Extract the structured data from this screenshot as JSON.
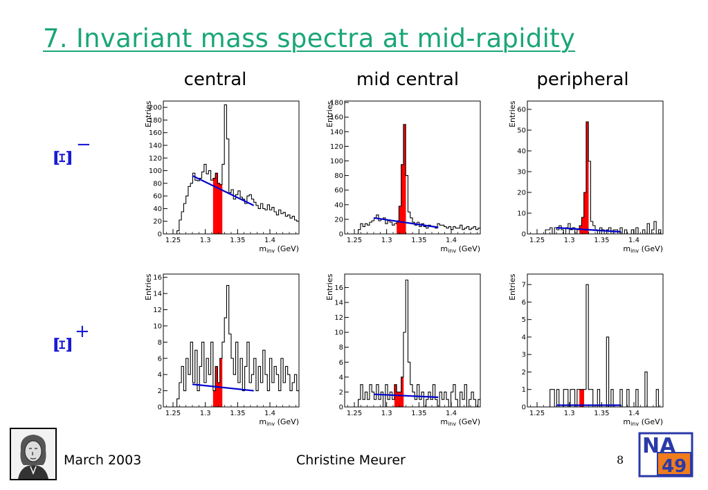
{
  "slide": {
    "title": "7. Invariant mass spectra at mid-rapidity",
    "columns": [
      "central",
      "mid central",
      "peripheral"
    ],
    "rows": [
      {
        "symbol": "Ξ",
        "superscript": "−"
      },
      {
        "symbol": "Ξ",
        "superscript": "+"
      }
    ],
    "footer": {
      "date": "March 2003",
      "author": "Christine Meurer",
      "page": "8"
    },
    "logo_text": {
      "top": "NA",
      "bottom": "49"
    },
    "colors": {
      "title": "#1aa676",
      "label": "#1a1ad6",
      "signal": "#ff0000",
      "fit": "#0000cc"
    }
  },
  "chart_data": [
    {
      "type": "histogram",
      "row": "Ξ−",
      "column": "central",
      "xlabel": "m_inv (GeV)",
      "ylabel": "Entries",
      "xlim": [
        1.235,
        1.445
      ],
      "ylim": [
        0,
        210
      ],
      "xticks": [
        1.25,
        1.3,
        1.35,
        1.4
      ],
      "yticks": [
        0,
        20,
        40,
        60,
        80,
        100,
        120,
        140,
        160,
        180,
        200
      ],
      "bin_width": 0.0035,
      "signal_range": [
        1.312,
        1.326
      ],
      "fit": {
        "x": [
          1.28,
          1.375
        ],
        "y": [
          92,
          45
        ]
      },
      "counts": [
        0,
        0,
        0,
        0,
        0,
        0,
        5,
        22,
        35,
        48,
        60,
        75,
        80,
        96,
        85,
        84,
        88,
        98,
        110,
        95,
        100,
        85,
        88,
        96,
        80,
        78,
        110,
        204,
        150,
        65,
        70,
        55,
        62,
        68,
        58,
        55,
        48,
        60,
        62,
        55,
        50,
        45,
        40,
        48,
        40,
        38,
        46,
        38,
        42,
        35,
        30,
        38,
        32,
        34,
        28,
        30,
        25,
        28,
        22,
        20
      ]
    },
    {
      "type": "histogram",
      "row": "Ξ−",
      "column": "mid central",
      "xlabel": "m_inv (GeV)",
      "ylabel": "Entries",
      "xlim": [
        1.235,
        1.445
      ],
      "ylim": [
        0,
        182
      ],
      "xticks": [
        1.25,
        1.3,
        1.35,
        1.4
      ],
      "yticks": [
        0,
        20,
        40,
        60,
        80,
        100,
        120,
        140,
        160,
        180
      ],
      "bin_width": 0.0035,
      "signal_range": [
        1.3145,
        1.3285
      ],
      "fit": {
        "x": [
          1.28,
          1.38
        ],
        "y": [
          22,
          9
        ]
      },
      "counts": [
        0,
        0,
        0,
        0,
        0,
        0,
        6,
        14,
        10,
        14,
        12,
        16,
        18,
        22,
        26,
        18,
        20,
        22,
        14,
        18,
        16,
        12,
        14,
        18,
        38,
        95,
        150,
        80,
        30,
        22,
        16,
        12,
        16,
        10,
        14,
        10,
        8,
        12,
        10,
        10,
        8,
        14,
        12,
        12,
        10,
        8,
        10,
        6,
        10,
        8,
        8,
        12,
        6,
        8,
        10,
        6,
        8,
        10,
        6,
        8
      ]
    },
    {
      "type": "histogram",
      "row": "Ξ−",
      "column": "peripheral",
      "xlabel": "m_inv (GeV)",
      "ylabel": "Entries",
      "xlim": [
        1.235,
        1.445
      ],
      "ylim": [
        0,
        64
      ],
      "xticks": [
        1.25,
        1.3,
        1.35,
        1.4
      ],
      "yticks": [
        0,
        10,
        20,
        30,
        40,
        50,
        60
      ],
      "bin_width": 0.0035,
      "signal_range": [
        1.3145,
        1.3285
      ],
      "fit": {
        "x": [
          1.28,
          1.38
        ],
        "y": [
          3,
          1
        ]
      },
      "counts": [
        0,
        0,
        0,
        0,
        0,
        0,
        0,
        0,
        2,
        2,
        3,
        0,
        3,
        2,
        4,
        2,
        0,
        3,
        5,
        2,
        3,
        0,
        2,
        4,
        8,
        20,
        54,
        35,
        6,
        4,
        2,
        0,
        3,
        2,
        0,
        2,
        3,
        0,
        2,
        2,
        0,
        3,
        0,
        2,
        0,
        0,
        2,
        0,
        3,
        0,
        0,
        2,
        0,
        5,
        0,
        2,
        6,
        0,
        2,
        0
      ]
    },
    {
      "type": "histogram",
      "row": "Ξ+",
      "column": "central",
      "xlabel": "m_inv (GeV)",
      "ylabel": "Entries",
      "xlim": [
        1.235,
        1.445
      ],
      "ylim": [
        0,
        16.4
      ],
      "xticks": [
        1.25,
        1.3,
        1.35,
        1.4
      ],
      "yticks": [
        0,
        2,
        4,
        6,
        8,
        10,
        12,
        14,
        16
      ],
      "bin_width": 0.0035,
      "signal_range": [
        1.311,
        1.327
      ],
      "fit": {
        "x": [
          1.28,
          1.375
        ],
        "y": [
          2.8,
          2.0
        ]
      },
      "counts": [
        0,
        0,
        0,
        0,
        0,
        0,
        1,
        3,
        5,
        2,
        6,
        4,
        8,
        3,
        7,
        2,
        5,
        8,
        3,
        6,
        4,
        8,
        2,
        5,
        3,
        6,
        8,
        11,
        15,
        9,
        6,
        4,
        8,
        3,
        6,
        2,
        5,
        8,
        3,
        4,
        6,
        2,
        5,
        3,
        7,
        4,
        2,
        6,
        3,
        5,
        4,
        2,
        6,
        3,
        5,
        4,
        2,
        3,
        4,
        2
      ]
    },
    {
      "type": "histogram",
      "row": "Ξ+",
      "column": "mid central",
      "xlabel": "m_inv (GeV)",
      "ylabel": "Entries",
      "xlim": [
        1.235,
        1.445
      ],
      "ylim": [
        0,
        17.8
      ],
      "xticks": [
        1.25,
        1.3,
        1.35,
        1.4
      ],
      "yticks": [
        0,
        2,
        4,
        6,
        8,
        10,
        12,
        14,
        16
      ],
      "bin_width": 0.0035,
      "signal_range": [
        1.3135,
        1.3275
      ],
      "fit": {
        "x": [
          1.28,
          1.38
        ],
        "y": [
          1.7,
          1.3
        ]
      },
      "counts": [
        0,
        0,
        0,
        0,
        0,
        0,
        1,
        3,
        1,
        2,
        1,
        3,
        2,
        1,
        3,
        1,
        2,
        0,
        3,
        1,
        2,
        1,
        3,
        2,
        2,
        4,
        10,
        17,
        6,
        3,
        2,
        1,
        3,
        1,
        2,
        0,
        1,
        2,
        1,
        3,
        1,
        0,
        2,
        1,
        2,
        1,
        0,
        2,
        3,
        1,
        0,
        2,
        1,
        3,
        0,
        1,
        2,
        1,
        0,
        1
      ]
    },
    {
      "type": "histogram",
      "row": "Ξ+",
      "column": "peripheral",
      "xlabel": "m_inv (GeV)",
      "ylabel": "Entries",
      "xlim": [
        1.235,
        1.445
      ],
      "ylim": [
        0,
        7.6
      ],
      "xticks": [
        1.25,
        1.3,
        1.35,
        1.4
      ],
      "yticks": [
        0,
        1,
        2,
        3,
        4,
        5,
        6,
        7
      ],
      "bin_width": 0.0035,
      "signal_range": [
        1.3145,
        1.3215
      ],
      "fit": {
        "x": [
          1.28,
          1.38
        ],
        "y": [
          0.1,
          0.1
        ]
      },
      "counts": [
        0,
        0,
        0,
        0,
        0,
        0,
        0,
        0,
        0,
        0,
        1,
        1,
        0,
        1,
        0,
        0,
        1,
        1,
        0,
        1,
        1,
        0,
        1,
        1,
        1,
        1,
        7,
        1,
        1,
        0,
        0,
        1,
        0,
        0,
        0,
        4,
        0,
        1,
        0,
        0,
        0,
        1,
        0,
        0,
        1,
        0,
        0,
        0,
        1,
        0,
        0,
        0,
        2,
        0,
        0,
        0,
        0,
        1,
        0,
        0
      ]
    }
  ]
}
